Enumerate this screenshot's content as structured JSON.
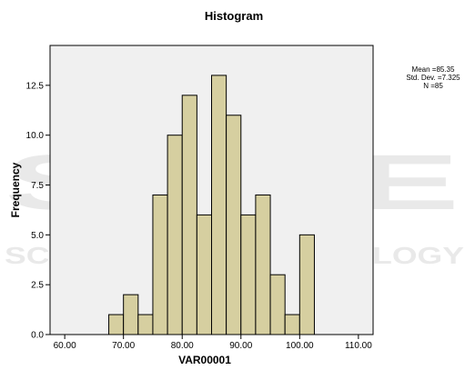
{
  "chart_data": {
    "type": "bar",
    "title": "Histogram",
    "xlabel": "VAR00001",
    "ylabel": "Frequency",
    "bin_width": 2.5,
    "bin_centers": [
      68.75,
      71.25,
      73.75,
      76.25,
      78.75,
      81.25,
      83.75,
      86.25,
      88.75,
      91.25,
      93.75,
      96.25,
      98.75,
      101.25
    ],
    "values": [
      1,
      2,
      1,
      7,
      10,
      12,
      6,
      13,
      11,
      6,
      7,
      3,
      1,
      5
    ],
    "xlim": [
      57.5,
      112.5
    ],
    "ylim": [
      0,
      14.5
    ],
    "x_ticks": [
      60,
      70,
      80,
      90,
      100,
      110
    ],
    "x_tick_labels": [
      "60.00",
      "70.00",
      "80.00",
      "90.00",
      "100.00",
      "110.00"
    ],
    "y_ticks": [
      0,
      2.5,
      5,
      7.5,
      10,
      12.5
    ],
    "y_tick_labels": [
      "0.0",
      "2.5",
      "5.0",
      "7.5",
      "10.0",
      "12.5"
    ],
    "grid": false,
    "stats": [
      "Mean =85.35",
      "Std. Dev. =7.325",
      "N =85"
    ],
    "colors": {
      "bar_fill": "#d6cfa0",
      "bar_stroke": "#000000",
      "plot_bg": "#f0f0f0",
      "page_bg": "#ffffff"
    }
  },
  "watermark": [
    "SCITE",
    "SCIENCE AND TECHNOLOGY"
  ]
}
